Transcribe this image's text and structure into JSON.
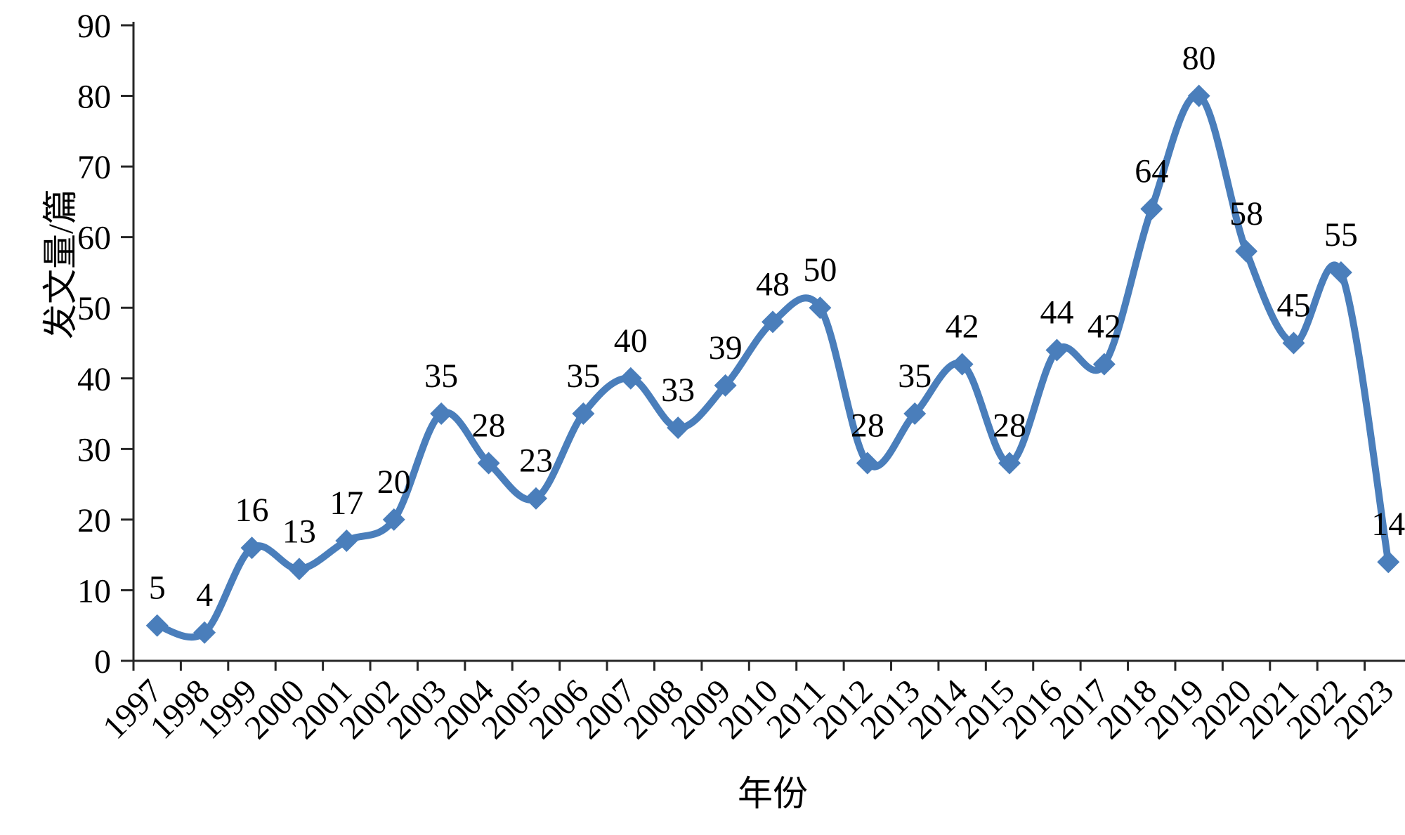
{
  "chart_data": {
    "type": "line",
    "title": "",
    "xlabel": "年份",
    "ylabel": "发文量/篇",
    "categories": [
      "1997",
      "1998",
      "1999",
      "2000",
      "2001",
      "2002",
      "2003",
      "2004",
      "2005",
      "2006",
      "2007",
      "2008",
      "2009",
      "2010",
      "2011",
      "2012",
      "2013",
      "2014",
      "2015",
      "2016",
      "2017",
      "2018",
      "2019",
      "2020",
      "2021",
      "2022",
      "2023"
    ],
    "values": [
      5,
      4,
      16,
      13,
      17,
      20,
      35,
      28,
      23,
      35,
      40,
      33,
      39,
      48,
      50,
      28,
      35,
      42,
      28,
      44,
      42,
      64,
      80,
      58,
      45,
      55,
      14
    ],
    "ylim": [
      0,
      90
    ],
    "yticks": [
      0,
      10,
      20,
      30,
      40,
      50,
      60,
      70,
      80,
      90
    ],
    "grid": false,
    "legend": "none",
    "smooth": true,
    "marker": "diamond",
    "data_labels": true,
    "line_color": "#4a7ebb",
    "marker_color": "#4a7ebb",
    "axis_color": "#262626",
    "label_color": "#000000"
  }
}
